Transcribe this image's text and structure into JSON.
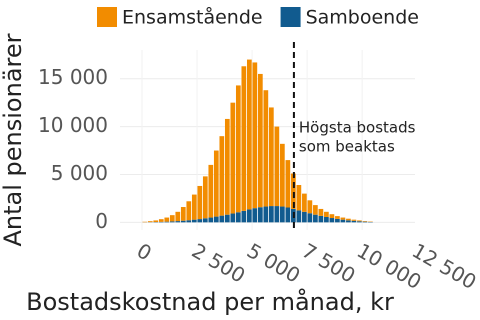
{
  "chart_data": {
    "type": "stacked_histogram",
    "x_label": "Bostadskostnad per månad, kr",
    "y_label": "Antal pensionärer",
    "bins": [
      0,
      250,
      500,
      750,
      1000,
      1250,
      1500,
      1750,
      2000,
      2250,
      2500,
      2750,
      3000,
      3250,
      3500,
      3750,
      4000,
      4250,
      4500,
      4750,
      5000,
      5250,
      5500,
      5750,
      6000,
      6250,
      6500,
      6750,
      7000,
      7250,
      7500,
      7750,
      8000,
      8250,
      8500,
      8750,
      9000,
      9250,
      9500,
      9750,
      10000,
      10250,
      10500
    ],
    "series": [
      {
        "name": "Ensamstående",
        "color": "#f28c00",
        "values": [
          50,
          100,
          170,
          280,
          430,
          650,
          970,
          1430,
          1980,
          2620,
          3460,
          4380,
          5500,
          6900,
          8300,
          10000,
          11580,
          13250,
          15100,
          15650,
          15220,
          13920,
          12150,
          10300,
          8300,
          6550,
          4950,
          3700,
          2650,
          1900,
          1350,
          1000,
          720,
          540,
          400,
          290,
          220,
          170,
          120,
          90,
          60,
          40
        ]
      },
      {
        "name": "Samboende",
        "color": "#115b8f",
        "values": [
          10,
          20,
          30,
          50,
          70,
          100,
          130,
          170,
          220,
          280,
          340,
          420,
          500,
          600,
          700,
          800,
          920,
          1050,
          1200,
          1350,
          1480,
          1580,
          1650,
          1700,
          1700,
          1650,
          1550,
          1400,
          1250,
          1100,
          950,
          800,
          680,
          560,
          450,
          360,
          280,
          210,
          160,
          110,
          70,
          40
        ]
      }
    ],
    "vline": 6900,
    "annotation": [
      "Högsta bostads",
      "som beaktas"
    ],
    "xlim": [
      -1000,
      12400
    ],
    "xticks": [
      0,
      {
        "value": 2500,
        "label": "2 500"
      },
      {
        "value": 5000,
        "label": "5 000"
      },
      {
        "value": 7500,
        "label": "7 500"
      },
      {
        "value": 10000,
        "label": "10 000"
      },
      {
        "value": 12500,
        "label": "12 500"
      }
    ],
    "ylim": [
      -800,
      18000
    ],
    "yticks": [
      0,
      {
        "value": 5000,
        "label": "5 000"
      },
      {
        "value": 10000,
        "label": "10 000"
      },
      {
        "value": 15000,
        "label": "15 000"
      }
    ],
    "grid": true
  }
}
